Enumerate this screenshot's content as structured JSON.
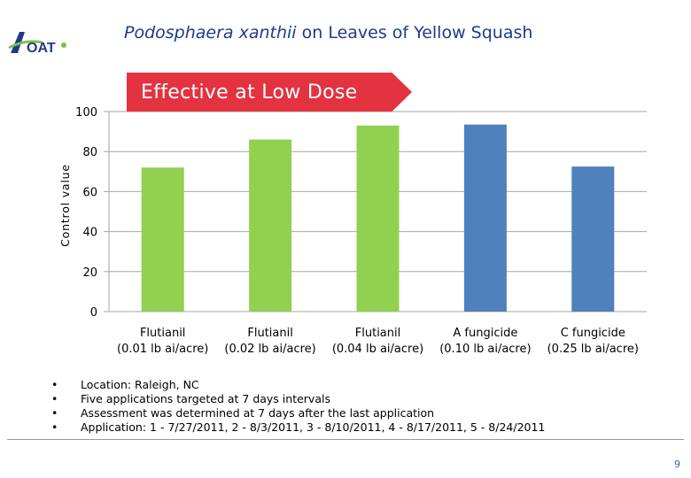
{
  "header": {
    "logo_text": "OAT",
    "title_italic": "Podosphaera xanthii",
    "title_rest": " on Leaves of Yellow Squash"
  },
  "callout": {
    "text": "Effective at Low Dose",
    "color": "#e33340"
  },
  "chart_data": {
    "type": "bar",
    "title": "",
    "ylabel": "Control value",
    "xlabel": "",
    "ylim": [
      0,
      100
    ],
    "yticks": [
      0,
      20,
      40,
      60,
      80,
      100
    ],
    "grid": true,
    "categories": [
      [
        "Flutianil",
        "(0.01 lb ai/acre)"
      ],
      [
        "Flutianil",
        "(0.02 lb ai/acre)"
      ],
      [
        "Flutianil",
        "(0.04 lb ai/acre)"
      ],
      [
        "A fungicide",
        "(0.10 lb ai/acre)"
      ],
      [
        "C fungicide",
        "(0.25 lb ai/acre)"
      ]
    ],
    "values": [
      72,
      86,
      93,
      93.5,
      72.5
    ],
    "colors": [
      "#92d050",
      "#92d050",
      "#92d050",
      "#4f81bd",
      "#4f81bd"
    ]
  },
  "notes": [
    "Location: Raleigh, NC",
    "Five applications targeted at 7 days intervals",
    "Assessment was determined at 7 days after the last application",
    "Application:  1 - 7/27/2011, 2 - 8/3/2011, 3 - 8/10/2011, 4 - 8/17/2011, 5 - 8/24/2011"
  ],
  "bullet_glyph": "•",
  "page_number": "9"
}
